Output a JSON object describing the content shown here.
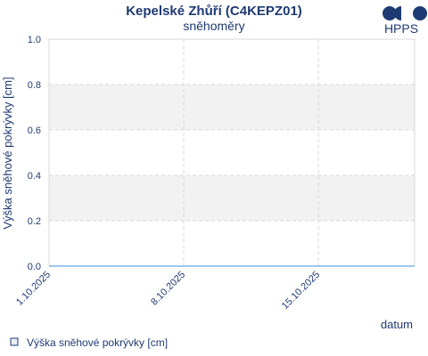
{
  "header": {
    "title": "Kepelské Zhůří (C4KEPZ01)",
    "subtitle": "sněhoměry",
    "logo_text": "HPPS"
  },
  "legend": {
    "label": "Výška sněhové pokrývky [cm]"
  },
  "colors": {
    "text": "#1f3a72",
    "band": "#f2f2f2",
    "grid": "#d8d8d8",
    "series": "#7cb5ec",
    "logo": "#1f3a72"
  },
  "chart_data": {
    "type": "line",
    "title": "Kepelské Zhůří (C4KEPZ01)",
    "subtitle": "sněhoměry",
    "xlabel": "datum",
    "ylabel": "Výška sněhové pokrývky [cm]",
    "ylim": [
      0,
      1
    ],
    "yticks": [
      "0.0",
      "0.2",
      "0.4",
      "0.6",
      "0.8",
      "1.0"
    ],
    "xlim": [
      "2025-10-01",
      "2025-10-20"
    ],
    "xticks": [
      {
        "date": "2025-10-01",
        "label": "1.10.2025"
      },
      {
        "date": "2025-10-08",
        "label": "8.10.2025"
      },
      {
        "date": "2025-10-15",
        "label": "15.10.2025"
      }
    ],
    "grid": true,
    "legend_position": "bottom-left",
    "series": [
      {
        "name": "Výška sněhové pokrývky [cm]",
        "x": [
          "2025-10-01",
          "2025-10-20"
        ],
        "y": [
          0,
          0
        ]
      }
    ]
  }
}
